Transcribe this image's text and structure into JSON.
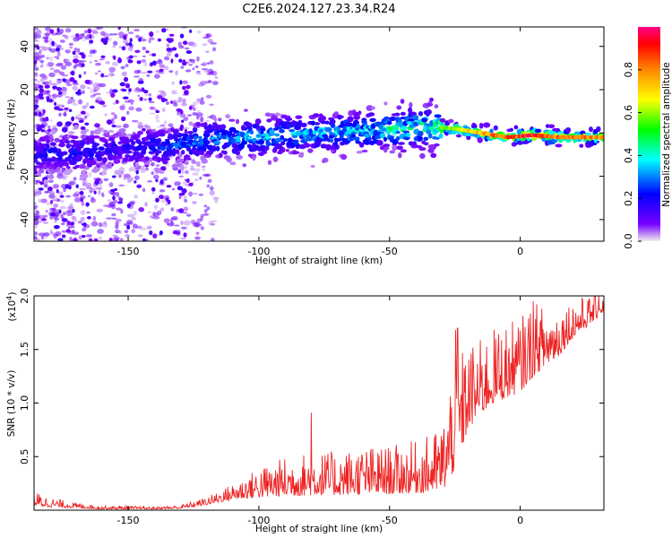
{
  "figure_title": "C2E6.2024.127.23.34.R24",
  "colors": {
    "spectrum_line": "#ee2222",
    "axis": "#000000"
  },
  "chart_data": [
    {
      "type": "heatmap",
      "title": "",
      "xlabel": "Height of straight line (km)",
      "ylabel": "Frequency (Hz)",
      "xlim": [
        -186,
        32
      ],
      "ylim": [
        -50,
        49
      ],
      "xticks": [
        -150,
        -100,
        -50,
        0
      ],
      "yticks": [
        -40,
        -20,
        0,
        20,
        40
      ],
      "colorbar": {
        "label": "Normalized spectral amplitude",
        "range": [
          0,
          1
        ],
        "ticks": [
          0.0,
          0.2,
          0.4,
          0.6,
          0.8
        ],
        "colormap": [
          "#f0f0f0",
          "#7700ff",
          "#0000ff",
          "#00ffff",
          "#00ff00",
          "#ffff00",
          "#ff8800",
          "#ff0000",
          "#ff0088"
        ]
      },
      "ridge": {
        "description_points_x": [
          -186,
          -170,
          -150,
          -135,
          -120,
          -100,
          -80,
          -60,
          -45,
          -35,
          -25,
          -15,
          -5,
          5,
          15,
          25,
          32
        ],
        "frequency_hz": [
          -10,
          -9,
          -7,
          -6,
          -3,
          -2,
          0,
          1,
          2,
          3,
          2,
          0,
          -2,
          -1,
          -2,
          -2,
          -2
        ],
        "peak_amplitude": [
          0.25,
          0.25,
          0.2,
          0.3,
          0.35,
          0.4,
          0.4,
          0.45,
          0.5,
          0.55,
          0.65,
          0.8,
          0.9,
          0.95,
          0.85,
          0.85,
          0.8
        ]
      }
    },
    {
      "type": "line",
      "title": "",
      "xlabel": "Height of straight line (km)",
      "ylabel": "SNR (10 * v/v)",
      "multiplier": "(x10",
      "multiplier_exp": "4",
      "multiplier_close": ")",
      "xlim": [
        -186,
        32
      ],
      "ylim": [
        0,
        20000
      ],
      "xticks": [
        -150,
        -100,
        -50,
        0
      ],
      "yticks": [
        5000,
        10000,
        15000,
        20000
      ],
      "ytick_labels": [
        "0.5",
        "1.0",
        "1.5",
        "2.0"
      ],
      "series": [
        {
          "x": [
            -186,
            -180,
            -170,
            -160,
            -150,
            -140,
            -130,
            -120,
            -110,
            -100,
            -90,
            -80,
            -70,
            -60,
            -50,
            -40,
            -35,
            -30,
            -27,
            -25,
            -22,
            -20,
            -15,
            -10,
            -5,
            0,
            5,
            10,
            15,
            20,
            25,
            32
          ],
          "y_low": [
            400,
            300,
            200,
            100,
            100,
            100,
            150,
            500,
            1000,
            1200,
            1300,
            1400,
            1400,
            1500,
            1500,
            1600,
            1700,
            1900,
            2500,
            4000,
            6000,
            7500,
            9000,
            10000,
            10500,
            11000,
            12500,
            13500,
            14500,
            16000,
            17000,
            18500
          ],
          "y_high": [
            1800,
            1200,
            700,
            400,
            400,
            300,
            500,
            1200,
            2500,
            4000,
            5000,
            5500,
            5500,
            6000,
            6000,
            6500,
            7000,
            8000,
            12000,
            17000,
            15000,
            15500,
            16000,
            17000,
            17500,
            18000,
            19500,
            19000,
            19000,
            19800,
            20000,
            20000
          ],
          "spikes": [
            {
              "x": -80,
              "y": 9100
            },
            {
              "x": -24,
              "y": 17000
            },
            {
              "x": 5,
              "y": 19500
            },
            {
              "x": 30,
              "y": 20000
            }
          ]
        }
      ]
    }
  ]
}
